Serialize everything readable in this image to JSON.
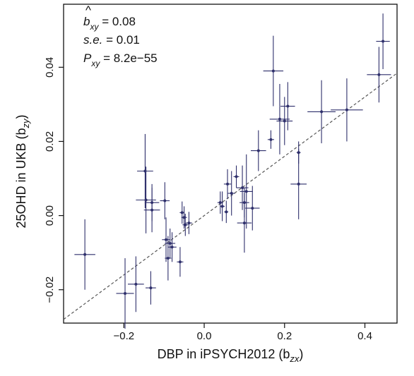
{
  "chart_data": {
    "type": "scatter",
    "xlabel": "DBP in iPSYCH2012 (b",
    "xlabel_sub": "zx",
    "xlabel_close": ")",
    "ylabel": "25OHD in UKB (b",
    "ylabel_sub": "zy",
    "ylabel_close": ")",
    "xlim": [
      -0.35,
      0.48
    ],
    "ylim": [
      -0.029,
      0.057
    ],
    "x_ticks": [
      -0.2,
      0.0,
      0.2,
      0.4
    ],
    "x_tick_labels": [
      "−0.2",
      "0.0",
      "0.2",
      "0.4"
    ],
    "y_ticks": [
      -0.02,
      0.0,
      0.02,
      0.04
    ],
    "y_tick_labels": [
      "−0.02",
      "0.00",
      "0.02",
      "0.04"
    ],
    "grid": false,
    "colors": {
      "points": "#2e2f6b",
      "fit_line": "#555555",
      "axis": "#111111"
    },
    "fit_line": {
      "slope": 0.08,
      "intercept": 0.0,
      "style": "dashed"
    },
    "annotations": {
      "line1_sym": "b",
      "line1_hat": "^",
      "line1_sub": "xy",
      "line1_val": " = 0.08",
      "line2_sym": "s.e.",
      "line2_val": " = 0.01",
      "line3_sym": "P",
      "line3_sub": "xy",
      "line3_val": " = 8.2e−55"
    },
    "points": [
      {
        "x": -0.297,
        "y": -0.0105,
        "xerr": 0.026,
        "yerr": 0.0095
      },
      {
        "x": -0.197,
        "y": -0.021,
        "xerr": 0.022,
        "yerr": 0.0095
      },
      {
        "x": -0.17,
        "y": -0.0185,
        "xerr": 0.02,
        "yerr": 0.0075
      },
      {
        "x": -0.133,
        "y": -0.0195,
        "xerr": 0.013,
        "yerr": 0.0045
      },
      {
        "x": -0.147,
        "y": 0.012,
        "xerr": 0.02,
        "yerr": 0.01
      },
      {
        "x": -0.145,
        "y": 0.0042,
        "xerr": 0.025,
        "yerr": 0.009
      },
      {
        "x": -0.13,
        "y": 0.0035,
        "xerr": 0.018,
        "yerr": 0.005
      },
      {
        "x": -0.13,
        "y": 0.0015,
        "xerr": 0.02,
        "yerr": 0.006
      },
      {
        "x": -0.098,
        "y": 0.004,
        "xerr": 0.012,
        "yerr": 0.005
      },
      {
        "x": -0.095,
        "y": -0.0065,
        "xerr": 0.01,
        "yerr": 0.006
      },
      {
        "x": -0.09,
        "y": -0.0115,
        "xerr": 0.008,
        "yerr": 0.006
      },
      {
        "x": -0.085,
        "y": -0.0075,
        "xerr": 0.013,
        "yerr": 0.004
      },
      {
        "x": -0.08,
        "y": -0.0085,
        "xerr": 0.011,
        "yerr": 0.004
      },
      {
        "x": -0.06,
        "y": -0.0125,
        "xerr": 0.008,
        "yerr": 0.004
      },
      {
        "x": -0.055,
        "y": 0.0008,
        "xerr": 0.006,
        "yerr": 0.003
      },
      {
        "x": -0.05,
        "y": -0.0005,
        "xerr": 0.007,
        "yerr": 0.003
      },
      {
        "x": -0.047,
        "y": -0.0025,
        "xerr": 0.007,
        "yerr": 0.003
      },
      {
        "x": -0.038,
        "y": -0.002,
        "xerr": 0.008,
        "yerr": 0.003
      },
      {
        "x": 0.04,
        "y": 0.0035,
        "xerr": 0.007,
        "yerr": 0.003
      },
      {
        "x": 0.045,
        "y": 0.0025,
        "xerr": 0.006,
        "yerr": 0.004
      },
      {
        "x": 0.055,
        "y": 0.001,
        "xerr": 0.005,
        "yerr": 0.003
      },
      {
        "x": 0.058,
        "y": 0.0085,
        "xerr": 0.009,
        "yerr": 0.004
      },
      {
        "x": 0.068,
        "y": 0.006,
        "xerr": 0.009,
        "yerr": 0.006
      },
      {
        "x": 0.08,
        "y": 0.0105,
        "xerr": 0.007,
        "yerr": 0.003
      },
      {
        "x": 0.095,
        "y": 0.0075,
        "xerr": 0.015,
        "yerr": 0.006
      },
      {
        "x": 0.1,
        "y": 0.0035,
        "xerr": 0.012,
        "yerr": 0.004
      },
      {
        "x": 0.105,
        "y": 0.0065,
        "xerr": 0.016,
        "yerr": 0.01
      },
      {
        "x": 0.1,
        "y": -0.002,
        "xerr": 0.018,
        "yerr": 0.008
      },
      {
        "x": 0.12,
        "y": 0.002,
        "xerr": 0.018,
        "yerr": 0.006
      },
      {
        "x": 0.135,
        "y": 0.0175,
        "xerr": 0.019,
        "yerr": 0.0055
      },
      {
        "x": 0.166,
        "y": 0.0205,
        "xerr": 0.008,
        "yerr": 0.0025
      },
      {
        "x": 0.172,
        "y": 0.039,
        "xerr": 0.025,
        "yerr": 0.0095
      },
      {
        "x": 0.188,
        "y": 0.026,
        "xerr": 0.025,
        "yerr": 0.0095
      },
      {
        "x": 0.2,
        "y": 0.0255,
        "xerr": 0.02,
        "yerr": 0.0065
      },
      {
        "x": 0.208,
        "y": 0.0295,
        "xerr": 0.018,
        "yerr": 0.0065
      },
      {
        "x": 0.235,
        "y": 0.017,
        "xerr": 0.005,
        "yerr": 0.003
      },
      {
        "x": 0.235,
        "y": 0.0085,
        "xerr": 0.02,
        "yerr": 0.0095
      },
      {
        "x": 0.292,
        "y": 0.028,
        "xerr": 0.035,
        "yerr": 0.0085
      },
      {
        "x": 0.355,
        "y": 0.0285,
        "xerr": 0.04,
        "yerr": 0.0085
      },
      {
        "x": 0.435,
        "y": 0.038,
        "xerr": 0.03,
        "yerr": 0.0075
      },
      {
        "x": 0.445,
        "y": 0.047,
        "xerr": 0.017,
        "yerr": 0.0075
      }
    ]
  }
}
